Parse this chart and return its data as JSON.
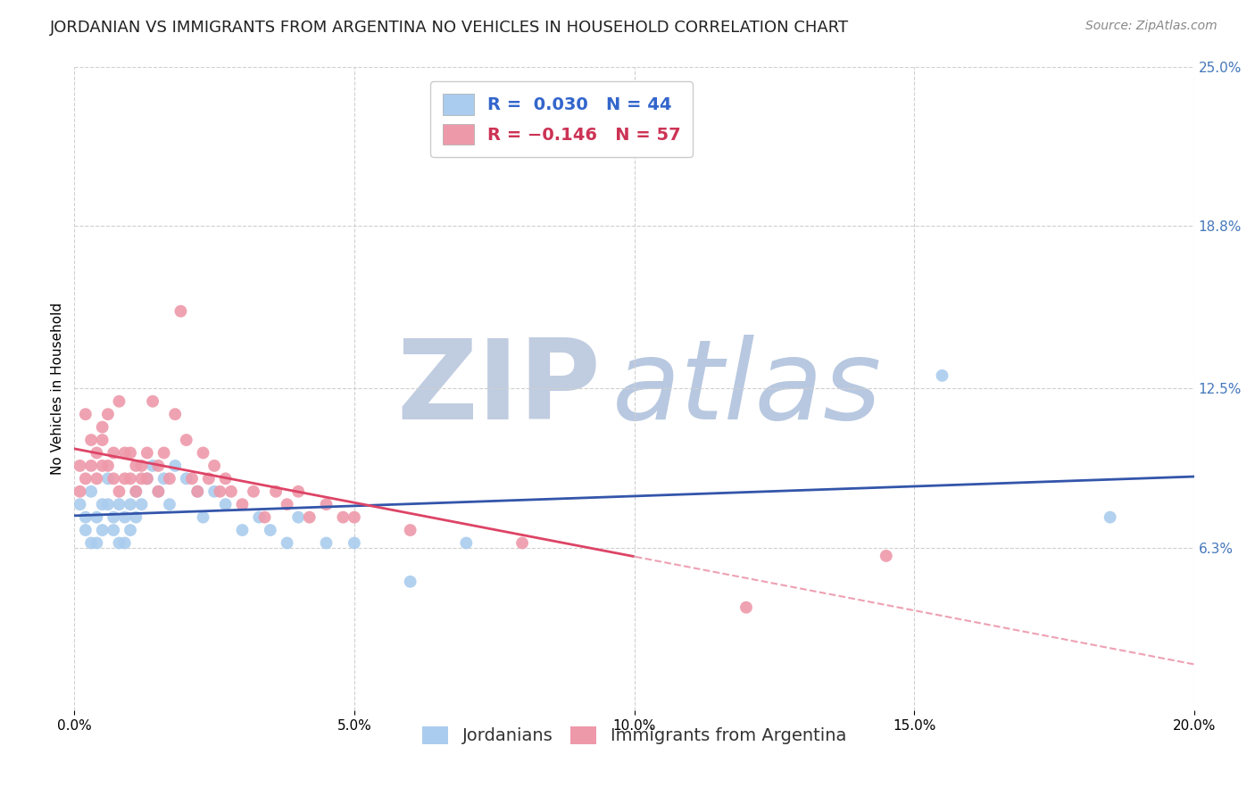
{
  "title": "JORDANIAN VS IMMIGRANTS FROM ARGENTINA NO VEHICLES IN HOUSEHOLD CORRELATION CHART",
  "source": "Source: ZipAtlas.com",
  "ylabel": "No Vehicles in Household",
  "xlim": [
    0.0,
    0.2
  ],
  "ylim": [
    0.0,
    0.25
  ],
  "xticks": [
    0.0,
    0.05,
    0.1,
    0.15,
    0.2
  ],
  "xtick_labels": [
    "0.0%",
    "5.0%",
    "10.0%",
    "15.0%",
    "20.0%"
  ],
  "ytick_labels": [
    "6.3%",
    "12.5%",
    "18.8%",
    "25.0%"
  ],
  "yticks": [
    0.063,
    0.125,
    0.188,
    0.25
  ],
  "series": [
    {
      "name": "Jordanians",
      "R": 0.03,
      "N": 44,
      "line_color": "#3355aa",
      "marker_color": "#aaccee",
      "x": [
        0.001,
        0.002,
        0.002,
        0.003,
        0.003,
        0.004,
        0.004,
        0.005,
        0.005,
        0.006,
        0.006,
        0.007,
        0.007,
        0.008,
        0.008,
        0.009,
        0.009,
        0.01,
        0.01,
        0.011,
        0.011,
        0.012,
        0.013,
        0.014,
        0.015,
        0.016,
        0.017,
        0.018,
        0.02,
        0.022,
        0.023,
        0.025,
        0.027,
        0.03,
        0.033,
        0.035,
        0.038,
        0.04,
        0.045,
        0.05,
        0.06,
        0.07,
        0.155,
        0.185
      ],
      "y": [
        0.08,
        0.075,
        0.07,
        0.065,
        0.085,
        0.075,
        0.065,
        0.08,
        0.07,
        0.09,
        0.08,
        0.075,
        0.07,
        0.08,
        0.065,
        0.075,
        0.065,
        0.08,
        0.07,
        0.075,
        0.085,
        0.08,
        0.09,
        0.095,
        0.085,
        0.09,
        0.08,
        0.095,
        0.09,
        0.085,
        0.075,
        0.085,
        0.08,
        0.07,
        0.075,
        0.07,
        0.065,
        0.075,
        0.065,
        0.065,
        0.05,
        0.065,
        0.13,
        0.075
      ],
      "trend_solid": true
    },
    {
      "name": "Immigrants from Argentina",
      "R": -0.146,
      "N": 57,
      "line_color": "#dd4466",
      "marker_color": "#ee99aa",
      "x": [
        0.001,
        0.001,
        0.002,
        0.002,
        0.003,
        0.003,
        0.004,
        0.004,
        0.005,
        0.005,
        0.005,
        0.006,
        0.006,
        0.007,
        0.007,
        0.008,
        0.008,
        0.009,
        0.009,
        0.01,
        0.01,
        0.011,
        0.011,
        0.012,
        0.012,
        0.013,
        0.013,
        0.014,
        0.015,
        0.015,
        0.016,
        0.017,
        0.018,
        0.019,
        0.02,
        0.021,
        0.022,
        0.023,
        0.024,
        0.025,
        0.026,
        0.027,
        0.028,
        0.03,
        0.032,
        0.034,
        0.036,
        0.038,
        0.04,
        0.042,
        0.045,
        0.048,
        0.05,
        0.06,
        0.08,
        0.12,
        0.145
      ],
      "y": [
        0.095,
        0.085,
        0.09,
        0.115,
        0.095,
        0.105,
        0.09,
        0.1,
        0.095,
        0.11,
        0.105,
        0.095,
        0.115,
        0.1,
        0.09,
        0.12,
        0.085,
        0.1,
        0.09,
        0.1,
        0.09,
        0.095,
        0.085,
        0.095,
        0.09,
        0.1,
        0.09,
        0.12,
        0.095,
        0.085,
        0.1,
        0.09,
        0.115,
        0.155,
        0.105,
        0.09,
        0.085,
        0.1,
        0.09,
        0.095,
        0.085,
        0.09,
        0.085,
        0.08,
        0.085,
        0.075,
        0.085,
        0.08,
        0.085,
        0.075,
        0.08,
        0.075,
        0.075,
        0.07,
        0.065,
        0.04,
        0.06
      ],
      "trend_solid": true,
      "trend_dashed_after": 0.1
    }
  ],
  "legend_R_color_blue": "#3366cc",
  "legend_R_color_pink": "#cc3355",
  "grid_color": "#d0d0d0",
  "watermark_zip": "ZIP",
  "watermark_atlas": "atlas",
  "watermark_color_zip": "#c0cce0",
  "watermark_color_atlas": "#b8c8e0",
  "bg_color": "#ffffff",
  "title_fontsize": 13,
  "axis_label_fontsize": 11,
  "tick_fontsize": 11,
  "legend_fontsize": 14,
  "source_fontsize": 10
}
